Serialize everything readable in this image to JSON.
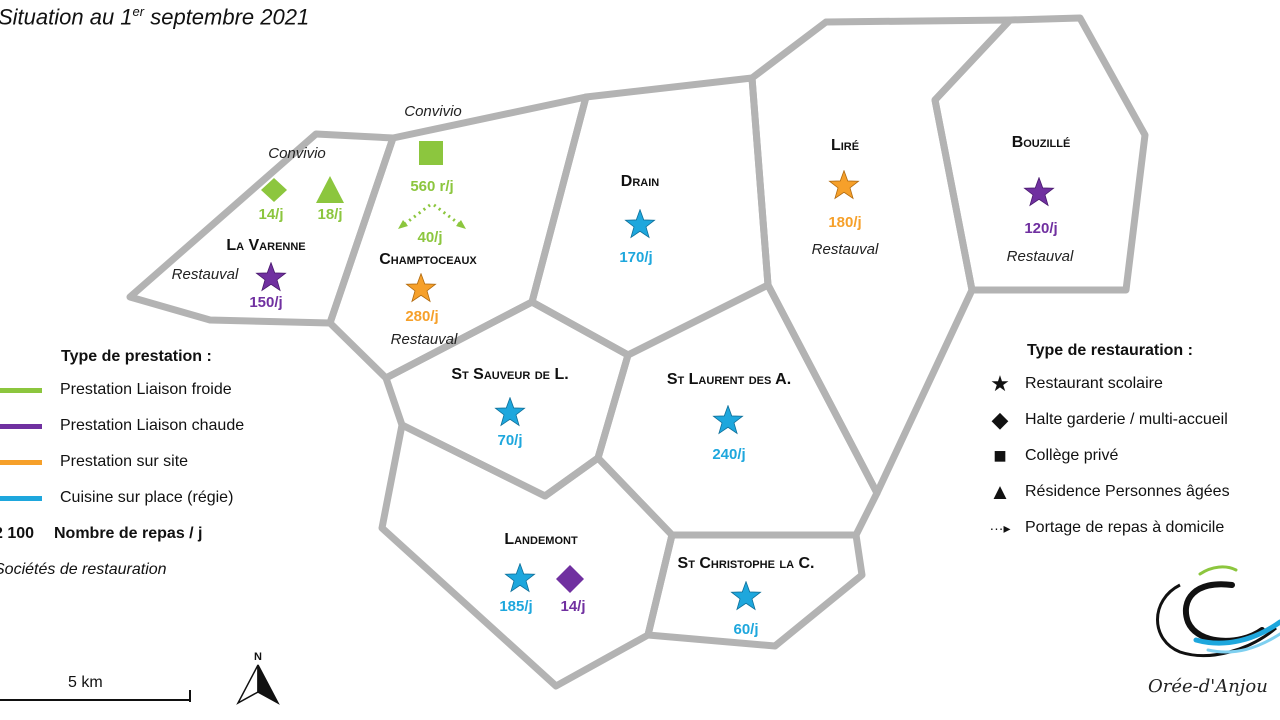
{
  "title": {
    "text": "Situation au 1",
    "sup": "er",
    "rest": " septembre 2021"
  },
  "colors": {
    "froide": "#8cc63e",
    "chaude": "#7030a0",
    "site": "#f6a02a",
    "regie": "#1ea7dd",
    "border": "#b3b3b3"
  },
  "communes": {
    "lavarenne": {
      "name": "La Varenne",
      "societe": "Restauval",
      "star_value": "150/j",
      "halte_value": "14/j",
      "residence_value": "18/j",
      "residence_societe": "Convivio"
    },
    "champtoceaux": {
      "name": "Champtoceaux",
      "societe": "Restauval",
      "star_value": "280/j",
      "college_value": "560 r/j",
      "college_societe": "Convivio",
      "portage_value": "40/j"
    },
    "drain": {
      "name": "Drain",
      "star_value": "170/j"
    },
    "lire": {
      "name": "Liré",
      "societe": "Restauval",
      "star_value": "180/j"
    },
    "bouzille": {
      "name": "Bouzillé",
      "societe": "Restauval",
      "star_value": "120/j"
    },
    "stsauveur": {
      "name": "St Sauveur de L.",
      "star_value": "70/j"
    },
    "stlaurent": {
      "name": "St Laurent des A.",
      "star_value": "240/j"
    },
    "landemont": {
      "name": "Landemont",
      "star_value": "185/j",
      "halte_value": "14/j"
    },
    "stchristophe": {
      "name": "St Christophe la C.",
      "star_value": "60/j"
    }
  },
  "legend_prestation": {
    "title": "Type de prestation :",
    "items": [
      {
        "label": "Prestation Liaison froide",
        "color": "#8cc63e"
      },
      {
        "label": "Prestation Liaison chaude",
        "color": "#7030a0"
      },
      {
        "label": "Prestation sur site",
        "color": "#f6a02a"
      },
      {
        "label": "Cuisine sur place (régie)",
        "color": "#1ea7dd"
      }
    ],
    "repas_num": "2 100",
    "repas_label": "Nombre de repas / j",
    "societes": "Sociétés de restauration"
  },
  "legend_restauration": {
    "title": "Type de restauration :",
    "items": [
      {
        "icon": "star-icon",
        "label": "Restaurant scolaire"
      },
      {
        "icon": "diamond-icon",
        "label": "Halte garderie / multi-accueil"
      },
      {
        "icon": "square-icon",
        "label": "Collège privé"
      },
      {
        "icon": "triangle-icon",
        "label": "Résidence Personnes âgées"
      },
      {
        "icon": "dotted-arrow-icon",
        "label": "Portage de repas à domicile"
      }
    ]
  },
  "scale": {
    "label": "5 km"
  },
  "north": {
    "label": "N"
  },
  "logo": {
    "text": "Orée-d'Anjou"
  }
}
